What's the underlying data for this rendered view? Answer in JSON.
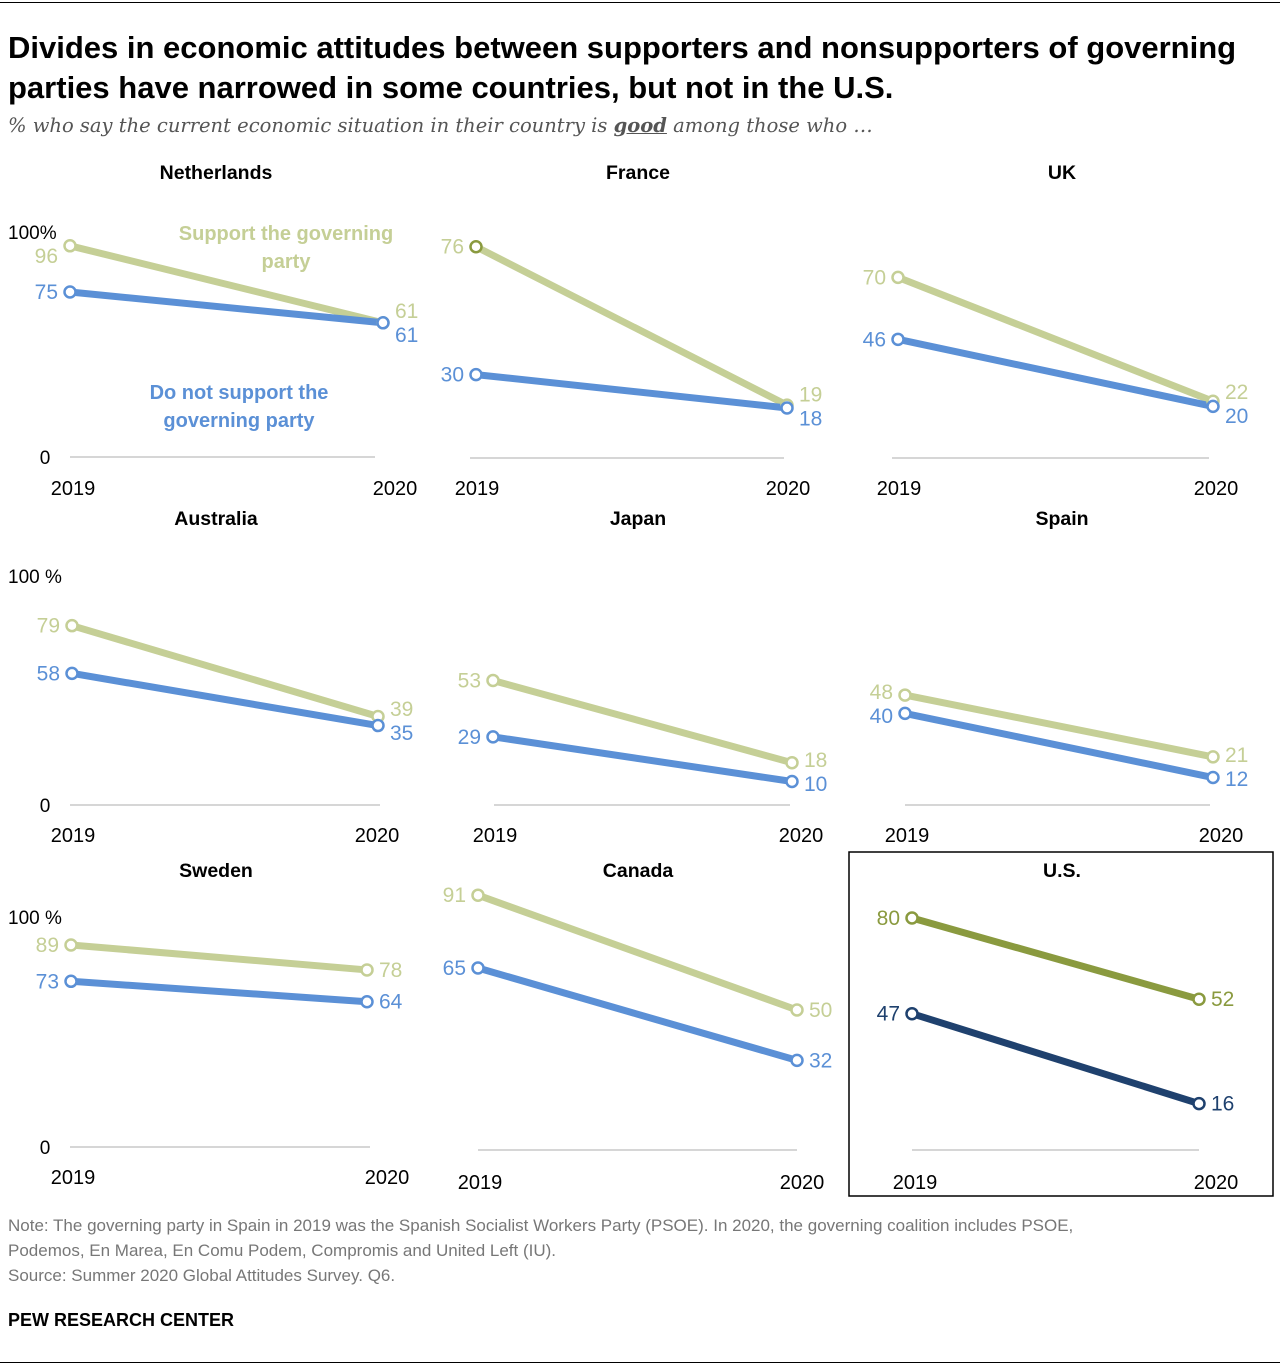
{
  "header": {
    "title": "Divides in economic attitudes between supporters and nonsupporters of governing parties have narrowed in some countries, but not in the U.S.",
    "subtitle_pre": "% who say the current economic situation in their country is ",
    "subtitle_em": "good",
    "subtitle_post": " among those who …"
  },
  "colors": {
    "support": "#c5cf96",
    "nonsupport": "#5b90d6",
    "us_support": "#8a9a3f",
    "us_nonsupport": "#1f416e",
    "axis": "#c8c8c8",
    "label_gray": "#333333"
  },
  "legend": {
    "support_line1": "Support the governing",
    "support_line2": "party",
    "nonsupport_line1": "Do not support the",
    "nonsupport_line2": "governing party"
  },
  "chart_data": [
    {
      "type": "line",
      "title": "Netherlands",
      "x": [
        "2019",
        "2020"
      ],
      "ylim": [
        0,
        100
      ],
      "y_ticks": [
        "0",
        "100%"
      ],
      "series": [
        {
          "name": "Support the governing party",
          "values": [
            96,
            61
          ]
        },
        {
          "name": "Do not support the governing party",
          "values": [
            75,
            61
          ]
        }
      ]
    },
    {
      "type": "line",
      "title": "France",
      "x": [
        "2019",
        "2020"
      ],
      "ylim": [
        0,
        100
      ],
      "y_ticks": [],
      "series": [
        {
          "values": [
            76,
            19
          ]
        },
        {
          "values": [
            30,
            18
          ]
        }
      ]
    },
    {
      "type": "line",
      "title": "UK",
      "x": [
        "2019",
        "2020"
      ],
      "ylim": [
        0,
        100
      ],
      "y_ticks": [],
      "series": [
        {
          "values": [
            70,
            22
          ]
        },
        {
          "values": [
            46,
            20
          ]
        }
      ]
    },
    {
      "type": "line",
      "title": "Australia",
      "x": [
        "2019",
        "2020"
      ],
      "ylim": [
        0,
        100
      ],
      "y_ticks": [
        "0",
        "100 %"
      ],
      "series": [
        {
          "values": [
            79,
            39
          ]
        },
        {
          "values": [
            58,
            35
          ]
        }
      ]
    },
    {
      "type": "line",
      "title": "Japan",
      "x": [
        "2019",
        "2020"
      ],
      "ylim": [
        0,
        100
      ],
      "y_ticks": [],
      "series": [
        {
          "values": [
            53,
            18
          ]
        },
        {
          "values": [
            29,
            10
          ]
        }
      ]
    },
    {
      "type": "line",
      "title": "Spain",
      "x": [
        "2019",
        "2020"
      ],
      "ylim": [
        0,
        100
      ],
      "y_ticks": [],
      "series": [
        {
          "values": [
            48,
            21
          ]
        },
        {
          "values": [
            40,
            12
          ]
        }
      ]
    },
    {
      "type": "line",
      "title": "Sweden",
      "x": [
        "2019",
        "2020"
      ],
      "ylim": [
        0,
        100
      ],
      "y_ticks": [
        "0",
        "100 %"
      ],
      "series": [
        {
          "values": [
            89,
            78
          ]
        },
        {
          "values": [
            73,
            64
          ]
        }
      ]
    },
    {
      "type": "line",
      "title": "Canada",
      "x": [
        "2019",
        "2020"
      ],
      "ylim": [
        0,
        100
      ],
      "y_ticks": [],
      "series": [
        {
          "values": [
            91,
            50
          ]
        },
        {
          "values": [
            65,
            32
          ]
        }
      ]
    },
    {
      "type": "line",
      "title": "U.S.",
      "x": [
        "2019",
        "2020"
      ],
      "ylim": [
        0,
        100
      ],
      "y_ticks": [],
      "highlight": true,
      "series": [
        {
          "values": [
            80,
            52
          ]
        },
        {
          "values": [
            47,
            16
          ]
        }
      ]
    }
  ],
  "footer": {
    "note_line1": "Note: The governing party in Spain in 2019 was the Spanish Socialist Workers Party (PSOE). In 2020, the governing coalition includes PSOE,",
    "note_line2": "Podemos, En Marea, En Comu Podem, Compromis and United Left (IU).",
    "source": "Source: Summer 2020 Global Attitudes Survey. Q6.",
    "org": "PEW RESEARCH CENTER"
  }
}
